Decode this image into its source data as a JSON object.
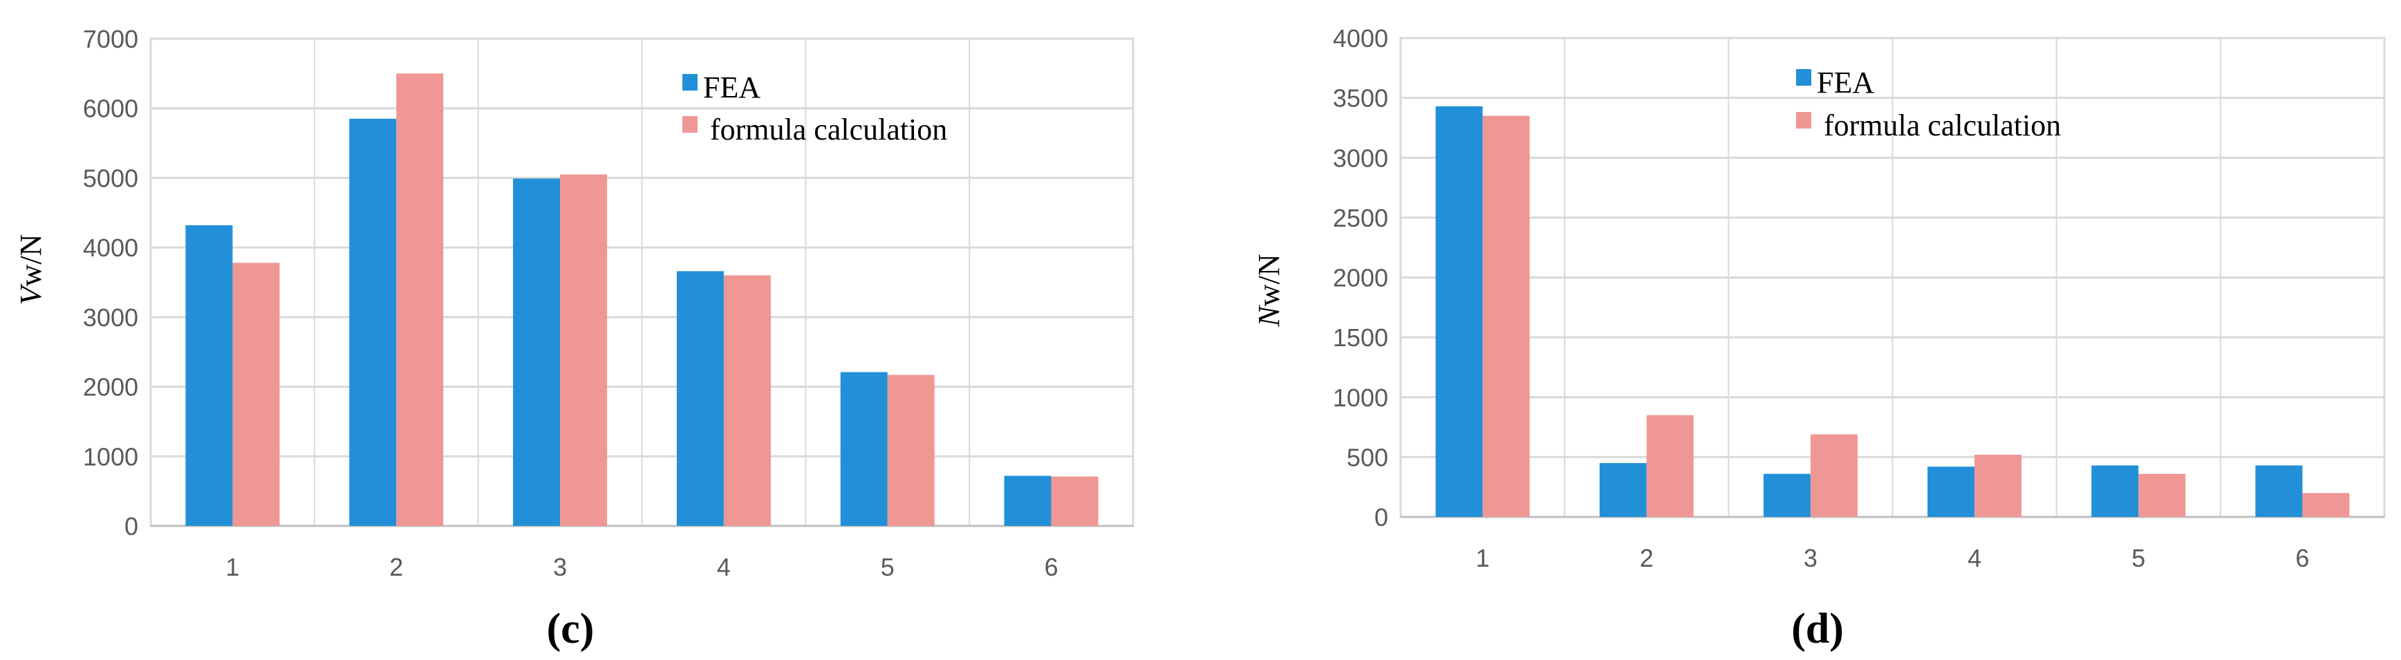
{
  "chart_data": [
    {
      "type": "bar",
      "panel_label": "(c)",
      "panel_letter": "c",
      "ylabel_italic": "V",
      "ylabel_rest": "w/N",
      "categories": [
        "1",
        "2",
        "3",
        "4",
        "5",
        "6"
      ],
      "ylim": [
        0,
        7000
      ],
      "yticks": [
        0,
        1000,
        2000,
        3000,
        4000,
        5000,
        6000,
        7000
      ],
      "grid": true,
      "legend_placement": "top-center",
      "series": [
        {
          "name": "FEA",
          "color": "#2190d8",
          "values": [
            4320,
            5850,
            4990,
            3660,
            2210,
            720
          ]
        },
        {
          "name": "formula calculation",
          "color": "#ef9794",
          "values": [
            3780,
            6500,
            5050,
            3600,
            2170,
            710
          ]
        }
      ]
    },
    {
      "type": "bar",
      "panel_label": "(d)",
      "panel_letter": "d",
      "ylabel_italic": "N",
      "ylabel_rest": "w/N",
      "categories": [
        "1",
        "2",
        "3",
        "4",
        "5",
        "6"
      ],
      "ylim": [
        0,
        4000
      ],
      "yticks": [
        0,
        500,
        1000,
        1500,
        2000,
        2500,
        3000,
        3500,
        4000
      ],
      "grid": true,
      "legend_placement": "top-center",
      "series": [
        {
          "name": "FEA",
          "color": "#2190d8",
          "values": [
            3430,
            450,
            360,
            420,
            430,
            430
          ]
        },
        {
          "name": "formula calculation",
          "color": "#ef9794",
          "values": [
            3350,
            850,
            690,
            520,
            360,
            200
          ]
        }
      ]
    }
  ]
}
